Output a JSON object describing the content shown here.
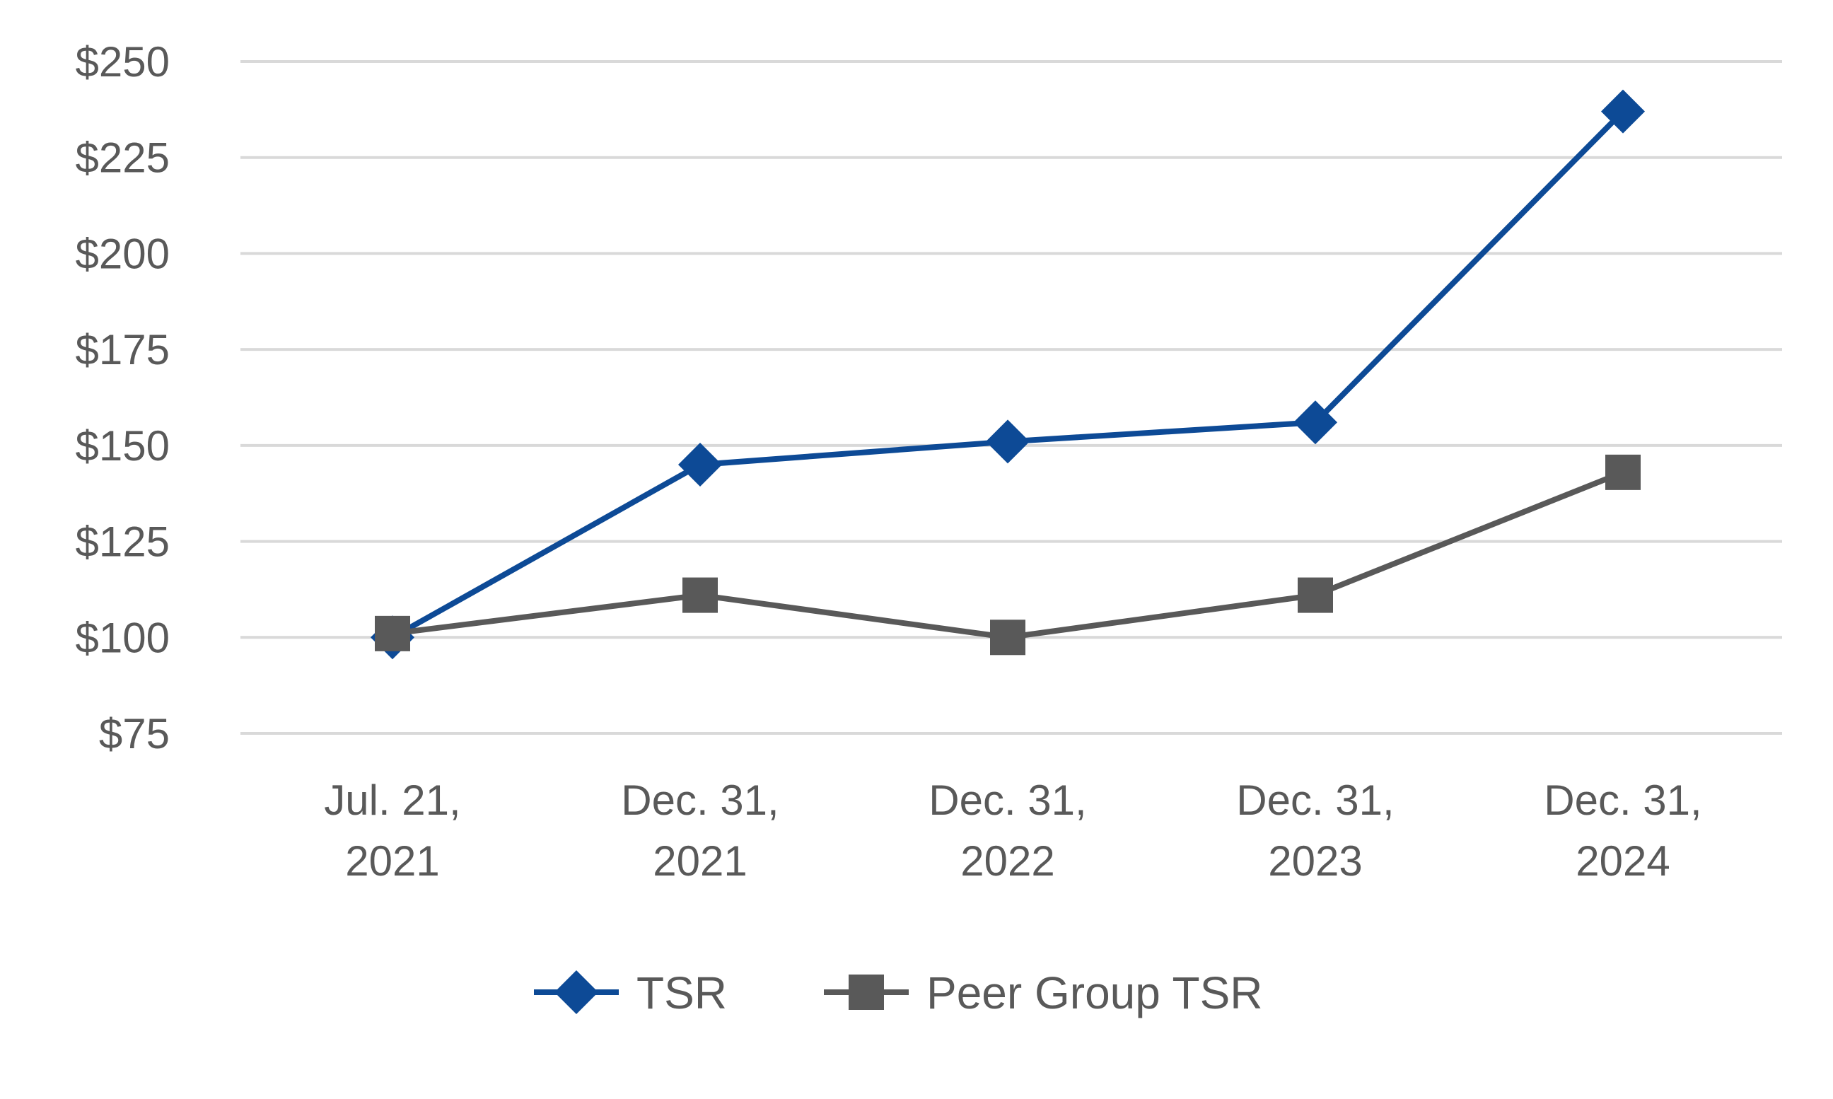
{
  "chart_data": {
    "type": "line",
    "categories": [
      [
        "Jul. 21,",
        "2021"
      ],
      [
        "Dec. 31,",
        "2021"
      ],
      [
        "Dec. 31,",
        "2022"
      ],
      [
        "Dec. 31,",
        "2023"
      ],
      [
        "Dec. 31,",
        "2024"
      ]
    ],
    "y_ticks": [
      "$75",
      "$100",
      "$125",
      "$150",
      "$175",
      "$200",
      "$225",
      "$250"
    ],
    "y_tick_values": [
      75,
      100,
      125,
      150,
      175,
      200,
      225,
      250
    ],
    "ylim": [
      75,
      250
    ],
    "grid": true,
    "legend_position": "bottom",
    "series": [
      {
        "name": "TSR",
        "values": [
          100,
          145,
          151,
          156,
          237
        ],
        "color": "#0d4a96",
        "marker": "diamond"
      },
      {
        "name": "Peer Group TSR",
        "values": [
          101,
          111,
          100,
          111,
          143
        ],
        "color": "#595959",
        "marker": "square"
      }
    ]
  }
}
